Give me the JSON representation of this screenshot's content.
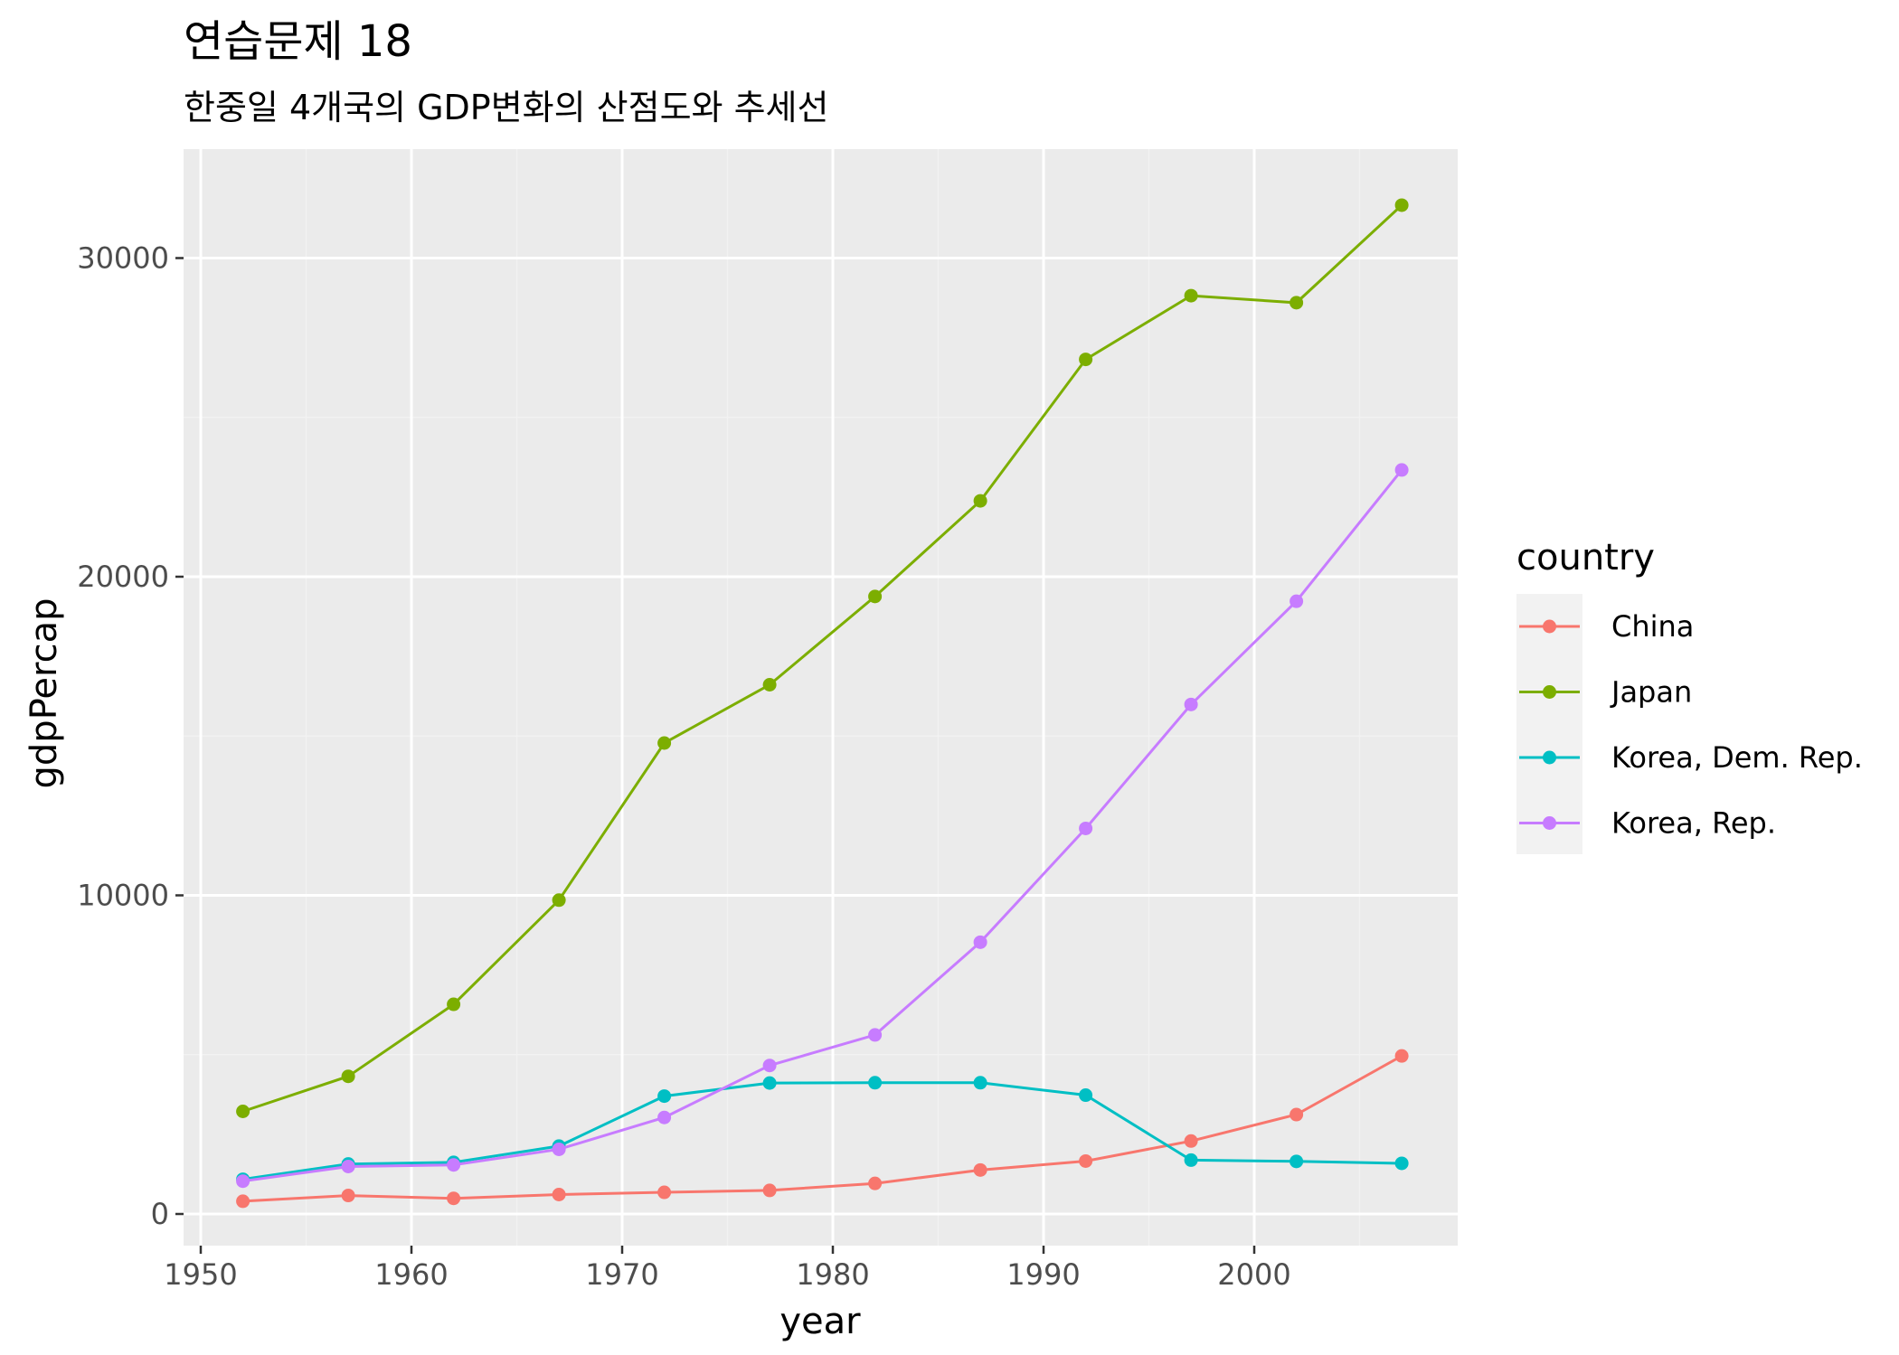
{
  "chart_data": {
    "type": "line",
    "title": "연습문제 18",
    "subtitle": "한중일 4개국의 GDP변화의 산점도와 추세선",
    "xlabel": "year",
    "ylabel": "gdpPercap",
    "xlim": [
      1950,
      2010
    ],
    "ylim": [
      0,
      32000
    ],
    "x_ticks": [
      1950,
      1960,
      1970,
      1980,
      1990,
      2000
    ],
    "x_tick_labels": [
      "1950",
      "1960",
      "1970",
      "1980",
      "1990",
      "2000"
    ],
    "y_ticks": [
      0,
      10000,
      20000,
      30000
    ],
    "y_tick_labels": [
      "0",
      "10000",
      "20000",
      "30000"
    ],
    "grid": true,
    "panel_background": "#ebebeb",
    "legend": {
      "title": "country",
      "position": "right"
    },
    "x": [
      1952,
      1957,
      1962,
      1967,
      1972,
      1977,
      1982,
      1987,
      1992,
      1997,
      2002,
      2007
    ],
    "series": [
      {
        "name": "China",
        "color": "#f8766d",
        "values": [
          400,
          580,
          490,
          610,
          680,
          740,
          960,
          1380,
          1660,
          2290,
          3120,
          4960
        ]
      },
      {
        "name": "Japan",
        "color": "#7cae00",
        "values": [
          3220,
          4320,
          6580,
          9850,
          14780,
          16610,
          19380,
          22380,
          26820,
          28820,
          28600,
          31660
        ]
      },
      {
        "name": "Korea, Dem. Rep.",
        "color": "#00bfc4",
        "values": [
          1090,
          1570,
          1620,
          2130,
          3700,
          4110,
          4120,
          4120,
          3730,
          1690,
          1650,
          1590
        ]
      },
      {
        "name": "Korea, Rep.",
        "color": "#c77cff",
        "values": [
          1030,
          1490,
          1540,
          2030,
          3030,
          4660,
          5620,
          8530,
          12100,
          15990,
          19230,
          23350
        ]
      }
    ]
  }
}
